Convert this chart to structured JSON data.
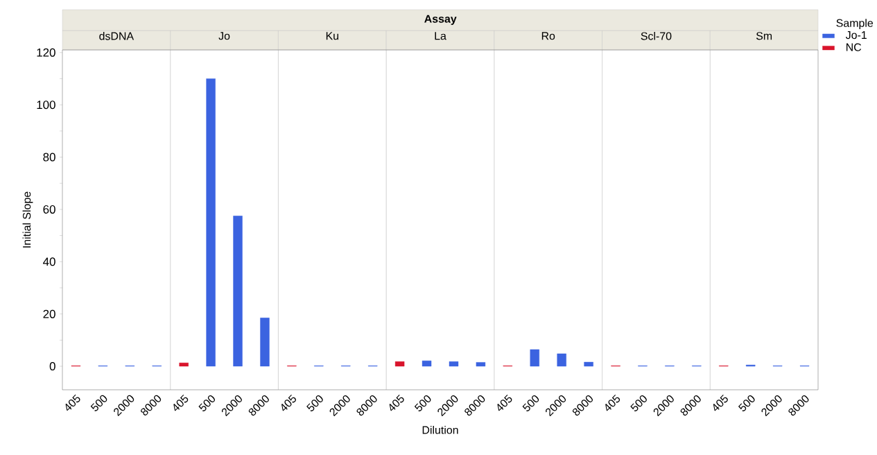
{
  "chart_data": [
    {
      "type": "bar",
      "title": "dsDNA",
      "ylabel": "Initial Slope",
      "annotations": [
        "Assay"
      ],
      "categories": [
        "405",
        "500",
        "2000",
        "8000"
      ],
      "series": [
        {
          "color": "#3b63e0",
          "values": [
            null,
            0.2,
            0.2,
            0.2
          ]
        },
        {
          "color": "#d9142c",
          "values": [
            0.2,
            null,
            null,
            null
          ]
        }
      ],
      "ylim": [
        -9,
        121
      ],
      "yticks": [
        0,
        {
          "value": 10,
          "label": null
        },
        20,
        {
          "value": 30,
          "label": null
        },
        40,
        {
          "value": 50,
          "label": null
        },
        60,
        {
          "value": 70,
          "label": null
        },
        80,
        {
          "value": 90,
          "label": null
        },
        100,
        {
          "value": 110,
          "label": null
        },
        120
      ],
      "legend": false
    },
    {
      "type": "bar",
      "title": "Jo",
      "categories": [
        "405",
        "500",
        "2000",
        "8000"
      ],
      "series": [
        {
          "color": "#3b63e0",
          "values": [
            null,
            110,
            57.5,
            18.5
          ]
        },
        {
          "color": "#d9142c",
          "values": [
            1.3,
            null,
            null,
            null
          ]
        }
      ],
      "ylim": [
        -9,
        121
      ],
      "yticks": [
        0,
        20,
        40,
        60,
        80,
        100,
        120
      ],
      "tick_labels": "x",
      "legend": false
    },
    {
      "type": "bar",
      "title": "Ku",
      "categories": [
        "405",
        "500",
        "2000",
        "8000"
      ],
      "series": [
        {
          "color": "#3b63e0",
          "values": [
            null,
            0.2,
            0.2,
            0.2
          ]
        },
        {
          "color": "#d9142c",
          "values": [
            0.2,
            null,
            null,
            null
          ]
        }
      ],
      "ylim": [
        -9,
        121
      ],
      "yticks": [
        0,
        20,
        40,
        60,
        80,
        100,
        120
      ],
      "tick_labels": "x",
      "legend": false
    },
    {
      "type": "bar",
      "title": "La",
      "xlabel": "Dilution",
      "categories": [
        "405",
        "500",
        "2000",
        "8000"
      ],
      "series": [
        {
          "color": "#3b63e0",
          "values": [
            null,
            2.1,
            1.8,
            1.5
          ]
        },
        {
          "color": "#d9142c",
          "values": [
            1.8,
            null,
            null,
            null
          ]
        }
      ],
      "ylim": [
        -9,
        121
      ],
      "yticks": [
        0,
        20,
        40,
        60,
        80,
        100,
        120
      ],
      "tick_labels": "x",
      "legend": false
    },
    {
      "type": "bar",
      "title": "Ro",
      "categories": [
        "405",
        "500",
        "2000",
        "8000"
      ],
      "series": [
        {
          "color": "#3b63e0",
          "values": [
            null,
            6.4,
            4.8,
            1.6
          ]
        },
        {
          "color": "#d9142c",
          "values": [
            0.2,
            null,
            null,
            null
          ]
        }
      ],
      "ylim": [
        -9,
        121
      ],
      "yticks": [
        0,
        20,
        40,
        60,
        80,
        100,
        120
      ],
      "tick_labels": "x",
      "legend": false
    },
    {
      "type": "bar",
      "title": "Scl-70",
      "categories": [
        "405",
        "500",
        "2000",
        "8000"
      ],
      "series": [
        {
          "color": "#3b63e0",
          "values": [
            null,
            0.2,
            0.2,
            0.2
          ]
        },
        {
          "color": "#d9142c",
          "values": [
            0.2,
            null,
            null,
            null
          ]
        }
      ],
      "ylim": [
        -9,
        121
      ],
      "yticks": [
        0,
        20,
        40,
        60,
        80,
        100,
        120
      ],
      "tick_labels": "x",
      "legend": false
    },
    {
      "type": "bar",
      "title": "Sm",
      "legend_title": "Sample",
      "categories": [
        "405",
        "500",
        "2000",
        "8000"
      ],
      "series": [
        {
          "name": "Jo-1",
          "color": "#3b63e0",
          "values": [
            null,
            0.5,
            0.2,
            0.2
          ]
        },
        {
          "name": "NC",
          "color": "#d9142c",
          "values": [
            0.2,
            null,
            null,
            null
          ]
        }
      ],
      "ylim": [
        -9,
        121
      ],
      "yticks": [
        0,
        20,
        40,
        60,
        80,
        100,
        120
      ],
      "tick_labels": "x",
      "legend": "top right"
    }
  ]
}
